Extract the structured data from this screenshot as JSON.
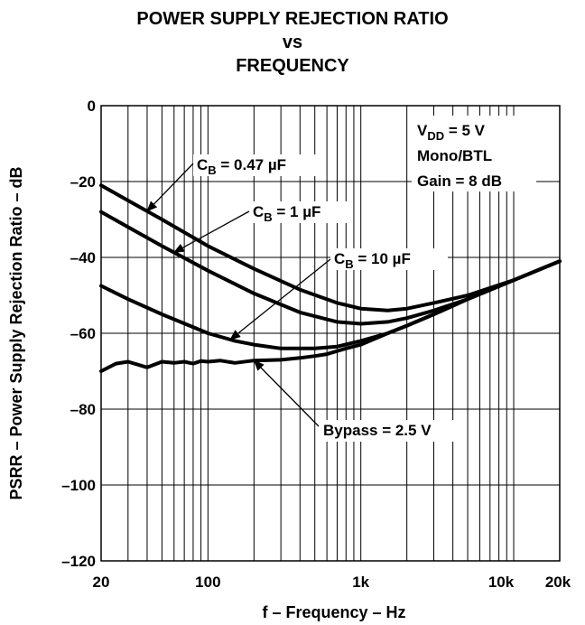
{
  "chart_data": {
    "type": "line",
    "title": [
      "POWER SUPPLY REJECTION RATIO",
      "vs",
      "FREQUENCY"
    ],
    "xlabel": "f – Frequency – Hz",
    "ylabel": "PSRR – Power Supply Rejection Ratio – dB",
    "xscale": "log",
    "xlim": [
      20,
      20000
    ],
    "ylim": [
      -120,
      0
    ],
    "grid": true,
    "x_ticks": [
      {
        "value": 20,
        "label": "20"
      },
      {
        "value": 100,
        "label": "100"
      },
      {
        "value": 1000,
        "label": "1k"
      },
      {
        "value": 10000,
        "label": "10k"
      },
      {
        "value": 20000,
        "label": "20k"
      }
    ],
    "y_ticks": [
      {
        "value": 0,
        "label": "0"
      },
      {
        "value": -20,
        "label": "–20"
      },
      {
        "value": -40,
        "label": "–40"
      },
      {
        "value": -60,
        "label": "–60"
      },
      {
        "value": -80,
        "label": "–80"
      },
      {
        "value": -100,
        "label": "–100"
      },
      {
        "value": -120,
        "label": "–120"
      }
    ],
    "conditions": [
      {
        "main": "V",
        "sub": "DD",
        "rest": " = 5 V"
      },
      {
        "main": "Mono/BTL"
      },
      {
        "main": "Gain = 8 dB"
      }
    ],
    "series": [
      {
        "label": {
          "main": "C",
          "sub": "B",
          "rest": " = 0.47 µF"
        },
        "arrow_at": 40,
        "x": [
          20,
          30,
          50,
          100,
          200,
          400,
          700,
          1000,
          1500,
          2000,
          3000,
          5000,
          10000,
          20000
        ],
        "y": [
          -21,
          -25,
          -30,
          -37,
          -43,
          -48.5,
          -52,
          -53.5,
          -54,
          -53.5,
          -52,
          -50,
          -46,
          -41
        ]
      },
      {
        "label": {
          "main": "C",
          "sub": "B",
          "rest": " = 1 µF"
        },
        "arrow_at": 60,
        "x": [
          20,
          30,
          50,
          100,
          200,
          400,
          700,
          1000,
          1500,
          2000,
          3000,
          5000,
          10000,
          20000
        ],
        "y": [
          -28,
          -32,
          -37,
          -43.5,
          -49.5,
          -54.5,
          -57,
          -57.5,
          -57,
          -56,
          -54,
          -51,
          -46,
          -41
        ]
      },
      {
        "label": {
          "main": "C",
          "sub": "B",
          "rest": " = 10 µF"
        },
        "arrow_at": 140,
        "x": [
          20,
          30,
          50,
          100,
          150,
          200,
          300,
          500,
          700,
          1000,
          1500,
          2000,
          3000,
          5000,
          10000,
          20000
        ],
        "y": [
          -47.5,
          -51,
          -55,
          -60,
          -62,
          -63,
          -64,
          -64,
          -63.5,
          -62,
          -60,
          -58,
          -55,
          -51,
          -46,
          -41
        ]
      },
      {
        "label": {
          "main": "Bypass = 2.5 V"
        },
        "arrow_at": 200,
        "x": [
          20,
          25,
          30,
          40,
          50,
          60,
          70,
          80,
          90,
          100,
          120,
          150,
          200,
          300,
          400,
          500,
          600,
          800,
          1000,
          1500,
          2000,
          3000,
          5000,
          10000,
          20000
        ],
        "y": [
          -70,
          -68,
          -67.5,
          -69,
          -67.5,
          -67.8,
          -67.5,
          -68,
          -67.3,
          -67.5,
          -67.2,
          -67.8,
          -67.2,
          -67,
          -66.5,
          -66,
          -65.5,
          -64,
          -63,
          -60,
          -58,
          -55,
          -51,
          -46,
          -41
        ]
      }
    ]
  }
}
